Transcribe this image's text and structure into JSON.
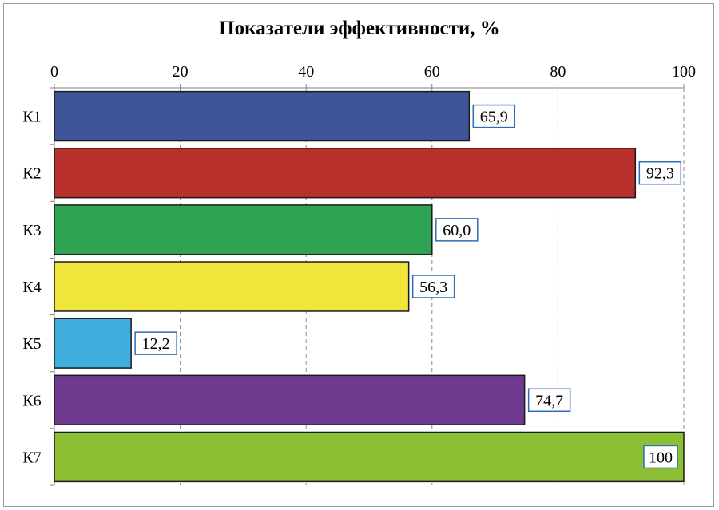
{
  "chart_data": {
    "type": "bar",
    "orientation": "horizontal",
    "title": "Показатели эффективности, %",
    "categories": [
      "К1",
      "К2",
      "К3",
      "К4",
      "К5",
      "К6",
      "К7"
    ],
    "values": [
      65.9,
      92.3,
      60.0,
      56.3,
      12.2,
      74.7,
      100
    ],
    "value_labels": [
      "65,9",
      "92,3",
      "60,0",
      "56,3",
      "12,2",
      "74,7",
      "100"
    ],
    "bar_colors": [
      "#3f5597",
      "#b7302b",
      "#2ea352",
      "#f0e63c",
      "#41aee0",
      "#6f3a8f",
      "#8dbf34"
    ],
    "xlim": [
      0,
      100
    ],
    "xticks": [
      0,
      20,
      40,
      60,
      80,
      100
    ],
    "xtick_labels": [
      "0",
      "20",
      "40",
      "60",
      "80",
      "100"
    ],
    "xaxis_position": "top",
    "grid": "vertical dashed",
    "xlabel": "",
    "ylabel": "",
    "label_border_color": "#2e6db4"
  }
}
